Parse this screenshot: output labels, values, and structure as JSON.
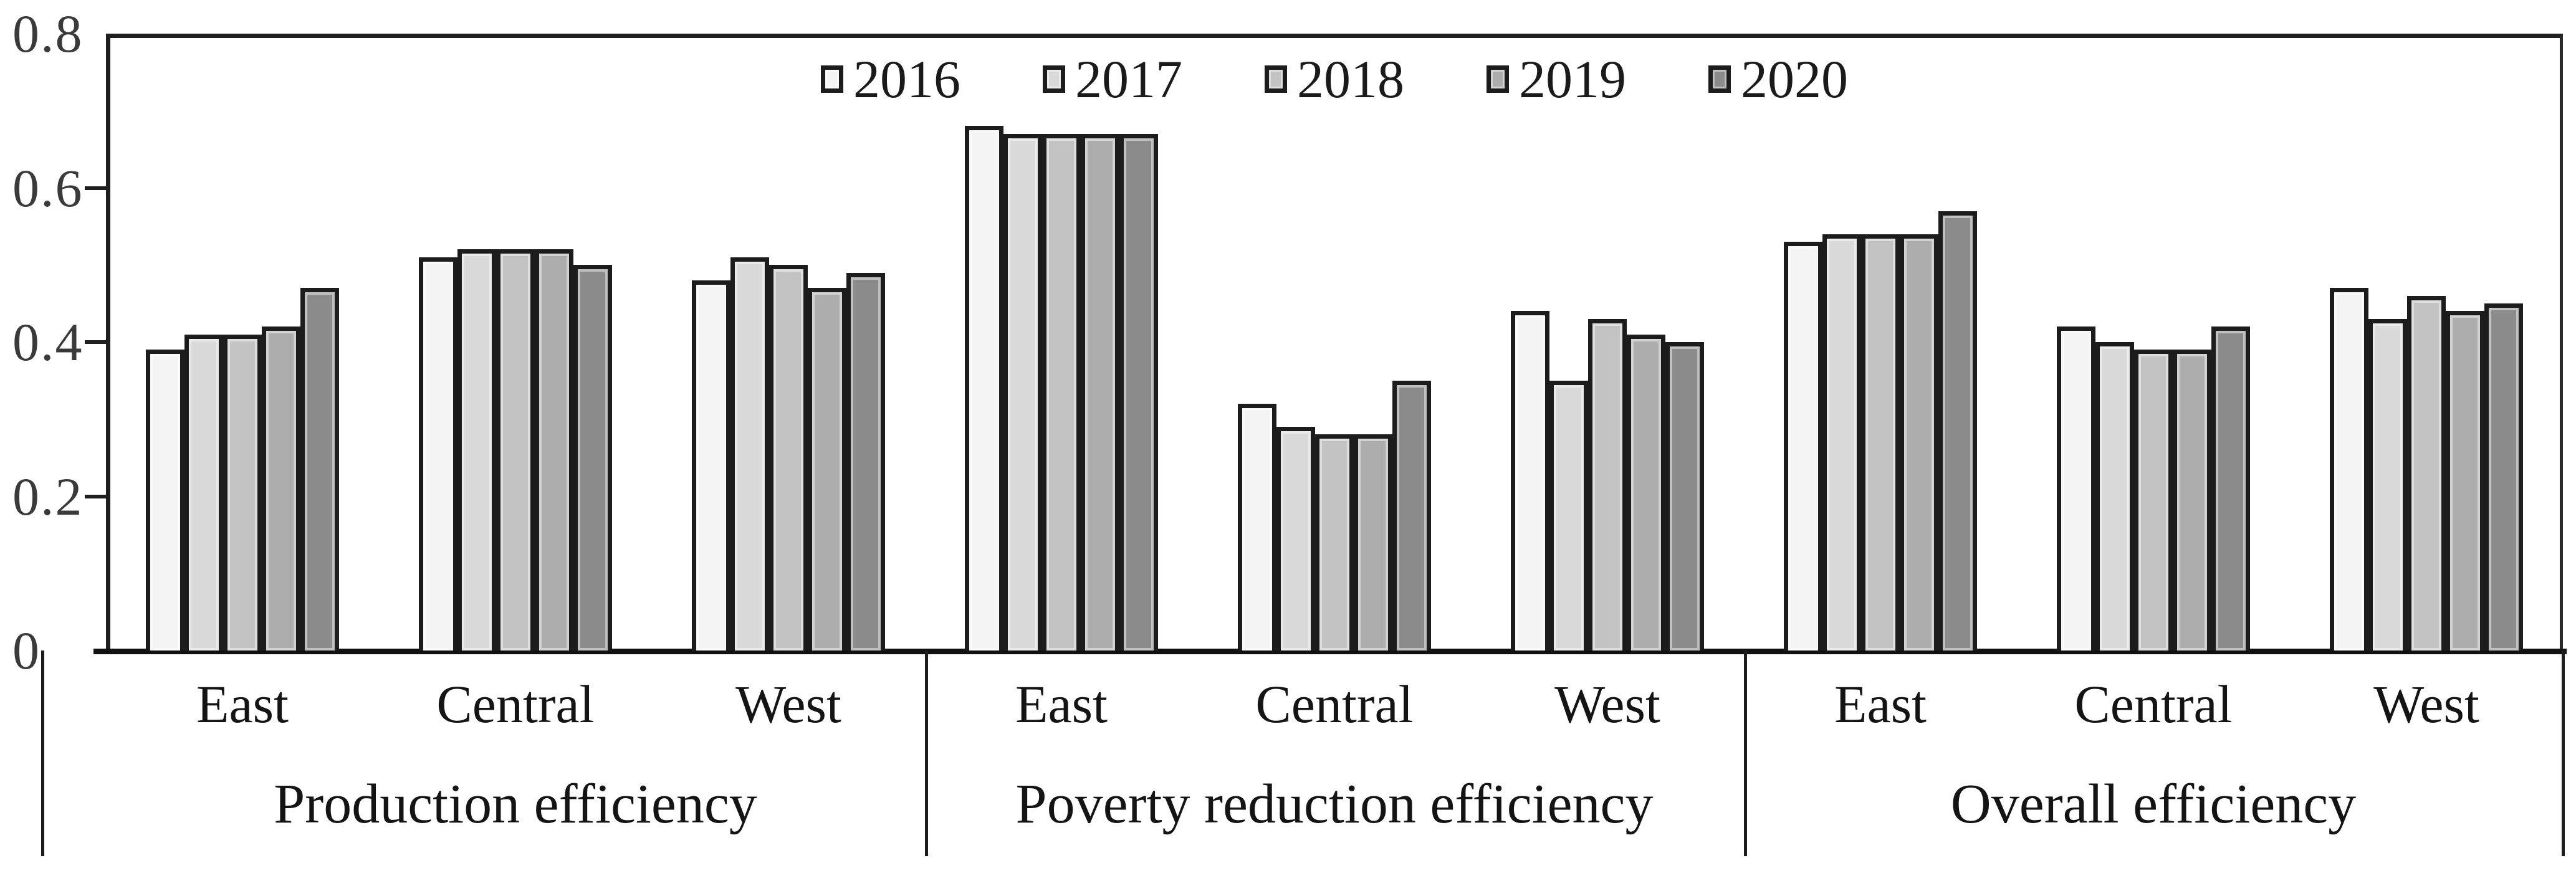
{
  "chart_data": {
    "type": "bar",
    "title": "",
    "grid": false,
    "legend_position": "top-center",
    "background": "#ffffff",
    "frame_color": "#1f1f1f",
    "bar_border_color": "#1c1c1c",
    "axis_text_color": "#3a3a3a",
    "label_text_color": "#141414",
    "y_axis": {
      "min": 0,
      "max": 0.8,
      "tick_step": 0.2,
      "tick_labels": [
        "0.8",
        "0.6",
        "0.4",
        "0.2",
        "0"
      ]
    },
    "group_labels": [
      "Production efficiency",
      "Poverty reduction efficiency",
      "Overall efficiency"
    ],
    "categories_per_group": [
      "East",
      "Central",
      "West"
    ],
    "category_slots": [
      "Production efficiency / East",
      "Production efficiency / Central",
      "Production efficiency / West",
      "Poverty reduction efficiency / East",
      "Poverty reduction efficiency / Central",
      "Poverty reduction efficiency / West",
      "Overall efficiency / East",
      "Overall efficiency / Central",
      "Overall efficiency / West"
    ],
    "series": [
      {
        "name": "2016",
        "fill": "#f4f4f4",
        "values": [
          0.39,
          0.51,
          0.48,
          0.68,
          0.32,
          0.44,
          0.53,
          0.42,
          0.47
        ]
      },
      {
        "name": "2017",
        "fill": "#d9d9d9",
        "values": [
          0.41,
          0.52,
          0.51,
          0.67,
          0.29,
          0.35,
          0.54,
          0.4,
          0.43
        ]
      },
      {
        "name": "2018",
        "fill": "#c3c3c3",
        "values": [
          0.41,
          0.52,
          0.5,
          0.67,
          0.28,
          0.43,
          0.54,
          0.39,
          0.46
        ]
      },
      {
        "name": "2019",
        "fill": "#adadad",
        "values": [
          0.42,
          0.52,
          0.47,
          0.67,
          0.28,
          0.41,
          0.54,
          0.39,
          0.44
        ]
      },
      {
        "name": "2020",
        "fill": "#8b8b8b",
        "values": [
          0.47,
          0.5,
          0.49,
          0.67,
          0.35,
          0.4,
          0.57,
          0.42,
          0.45
        ]
      }
    ]
  }
}
